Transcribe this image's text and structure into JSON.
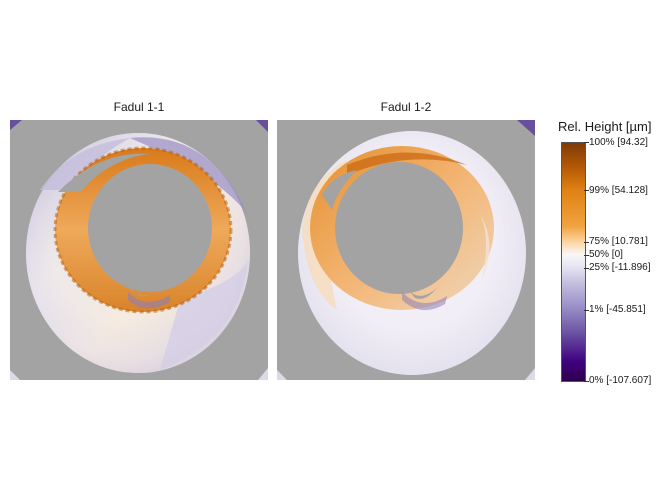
{
  "panels": [
    {
      "title": "Fadul 1-1"
    },
    {
      "title": "Fadul 1-2"
    }
  ],
  "legend": {
    "title": "Rel. Height [µm]",
    "ticks": [
      {
        "label": "100% [94.32]"
      },
      {
        "label": "99% [54.128]"
      },
      {
        "label": "75% [10.781]"
      },
      {
        "label": "50% [0]"
      },
      {
        "label": "25% [-11.896]"
      },
      {
        "label": "1% [-45.851]"
      },
      {
        "label": "0% [-107.607]"
      }
    ],
    "colors": {
      "high": "#7f3b08",
      "upper": "#e08214",
      "mid": "#f7f7f7",
      "lower": "#b2abd2",
      "low": "#2d004b"
    }
  },
  "background_color": "#a3a3a3"
}
